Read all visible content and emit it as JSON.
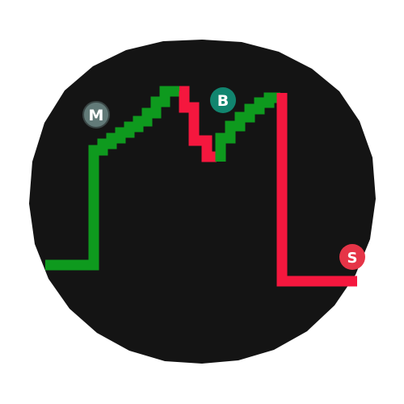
{
  "icon": {
    "name": "trading-chart-app-icon",
    "background_color": "#141414",
    "up_color": "#0e9a1e",
    "down_color": "#f5173e"
  },
  "badges": {
    "m": {
      "label": "M",
      "color": "#627a78",
      "text_color": "#1a1a1a"
    },
    "b": {
      "label": "B",
      "color": "#11856f",
      "text_color": "#ffffff"
    },
    "s": {
      "label": "S",
      "color": "#e53447",
      "text_color": "#ffffff"
    }
  }
}
